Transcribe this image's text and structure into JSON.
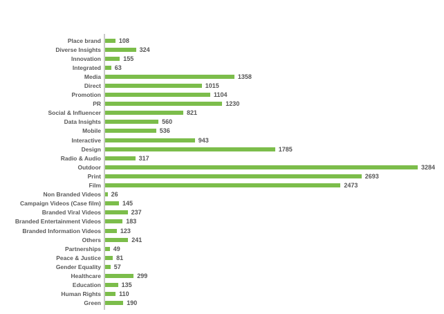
{
  "chart_data": {
    "type": "bar",
    "orientation": "horizontal",
    "title": "",
    "xlabel": "",
    "ylabel": "",
    "grid": false,
    "legend": false,
    "xlim": [
      0,
      3284
    ],
    "bar_color": "#7cbd4b",
    "label_color": "#595959",
    "value_label_color": "#555555",
    "axis_color": "#c9c9c9",
    "background_color": "#ffffff",
    "categories": [
      "Place brand",
      "Diverse Insights",
      "Innovation",
      "Integrated",
      "Media",
      "Direct",
      "Promotion",
      "PR",
      "Social & Influencer",
      "Data Insights",
      "Mobile",
      "Interactive",
      "Design",
      "Radio & Audio",
      "Outdoor",
      "Print",
      "Film",
      "Non Branded Videos",
      "Campaign Videos (Case film)",
      "Branded Viral Videos",
      "Branded Entertainment Videos",
      "Branded Information Videos",
      "Others",
      "Partnerships",
      "Peace & Justice",
      "Gender Equality",
      "Healthcare",
      "Education",
      "Human Rights",
      "Green"
    ],
    "values": [
      108,
      324,
      155,
      63,
      1358,
      1015,
      1104,
      1230,
      821,
      560,
      536,
      943,
      1785,
      317,
      3284,
      2693,
      2473,
      26,
      145,
      237,
      183,
      123,
      241,
      49,
      81,
      57,
      299,
      135,
      110,
      190
    ]
  }
}
